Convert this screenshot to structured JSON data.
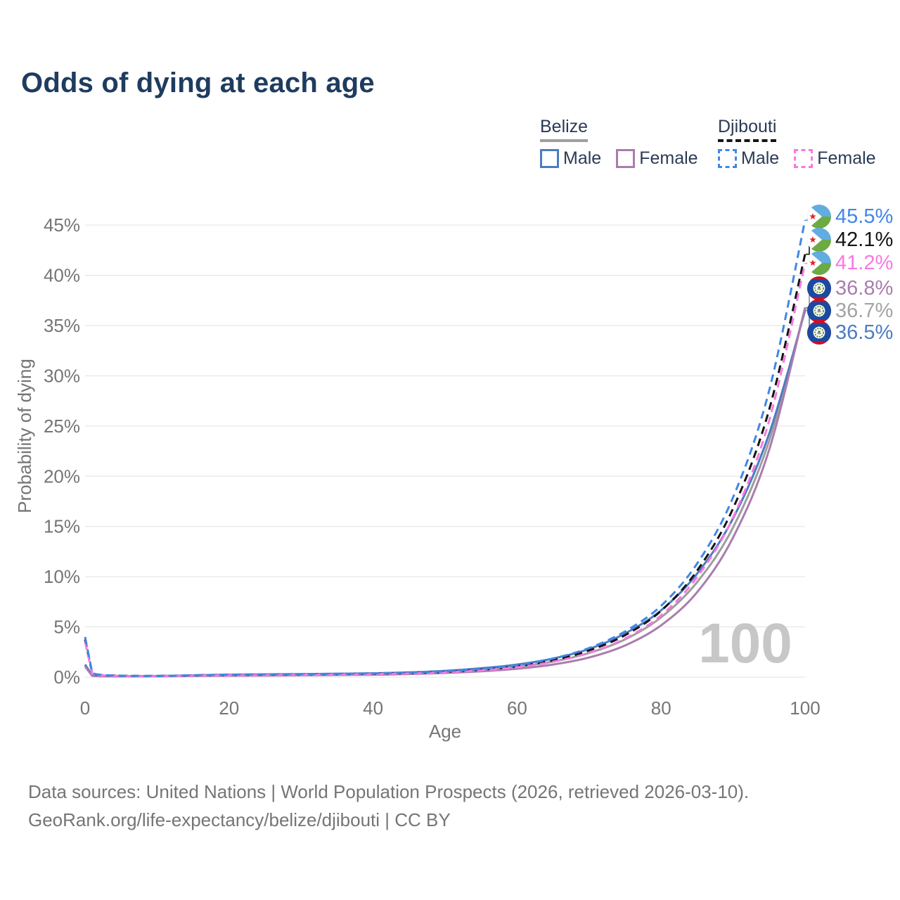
{
  "title": "Odds of dying at each age",
  "legend": {
    "groups": [
      {
        "label": "Belize",
        "line_style": "solid",
        "line_color": "#9e9e9e",
        "items": [
          {
            "label": "Male",
            "color": "#4c7cc0"
          },
          {
            "label": "Female",
            "color": "#aa7cae"
          }
        ]
      },
      {
        "label": "Djibouti",
        "line_style": "dashed",
        "line_color": "#141414",
        "items": [
          {
            "label": "Male",
            "color": "#4187e6"
          },
          {
            "label": "Female",
            "color": "#f878e2"
          }
        ]
      }
    ]
  },
  "watermark": "100",
  "footer": {
    "line1": "Data sources: United Nations | World Population Prospects (2026, retrieved 2026-03-10).",
    "line2": "GeoRank.org/life-expectancy/belize/djibouti | CC BY"
  },
  "chart_data": {
    "type": "line",
    "title": "Odds of dying at each age",
    "xlabel": "Age",
    "ylabel": "Probability of dying",
    "xlim": [
      0,
      100
    ],
    "ylim": [
      0,
      45
    ],
    "grid": true,
    "legend_position": "top-right",
    "x_ticks": [
      0,
      20,
      40,
      60,
      80,
      100
    ],
    "y_ticks": [
      0,
      5,
      10,
      15,
      20,
      25,
      30,
      35,
      40,
      45
    ],
    "y_tick_suffix": "%",
    "ages": [
      0,
      1,
      5,
      10,
      20,
      30,
      40,
      45,
      50,
      55,
      60,
      65,
      70,
      75,
      80,
      85,
      90,
      95,
      100
    ],
    "series": [
      {
        "name": "Belize Both sexes",
        "country": "Belize",
        "sex": "Both",
        "color": "#9e9e9e",
        "dashed": false,
        "end_label": "36.7%",
        "values": [
          1.15,
          0.14,
          0.08,
          0.1,
          0.19,
          0.25,
          0.31,
          0.4,
          0.52,
          0.73,
          1.04,
          1.55,
          2.4,
          3.75,
          5.95,
          9.45,
          14.9,
          23.5,
          36.7
        ]
      },
      {
        "name": "Belize Male",
        "country": "Belize",
        "sex": "Male",
        "color": "#4c7cc0",
        "dashed": false,
        "end_label": "36.5%",
        "values": [
          1.25,
          0.16,
          0.09,
          0.11,
          0.24,
          0.3,
          0.38,
          0.47,
          0.62,
          0.88,
          1.25,
          1.85,
          2.8,
          4.35,
          6.65,
          10.3,
          15.8,
          24.2,
          36.5
        ]
      },
      {
        "name": "Belize Female",
        "country": "Belize",
        "sex": "Female",
        "color": "#aa7cae",
        "dashed": false,
        "end_label": "36.8%",
        "values": [
          1.05,
          0.12,
          0.07,
          0.08,
          0.14,
          0.18,
          0.24,
          0.31,
          0.41,
          0.58,
          0.83,
          1.25,
          1.95,
          3.15,
          5.15,
          8.45,
          13.9,
          22.6,
          36.8
        ]
      },
      {
        "name": "Djibouti Both sexes",
        "country": "Djibouti",
        "sex": "Both",
        "color": "#141414",
        "dashed": true,
        "end_label": "42.1%",
        "values": [
          3.75,
          0.36,
          0.14,
          0.11,
          0.22,
          0.27,
          0.34,
          0.41,
          0.52,
          0.74,
          1.08,
          1.68,
          2.65,
          4.18,
          6.6,
          10.6,
          16.8,
          26.6,
          42.1
        ]
      },
      {
        "name": "Djibouti Female",
        "country": "Djibouti",
        "sex": "Female",
        "color": "#f878e2",
        "dashed": true,
        "end_label": "41.2%",
        "values": [
          3.5,
          0.33,
          0.12,
          0.1,
          0.19,
          0.24,
          0.3,
          0.37,
          0.47,
          0.67,
          0.98,
          1.53,
          2.42,
          3.85,
          6.15,
          9.95,
          15.9,
          25.5,
          41.2
        ]
      },
      {
        "name": "Djibouti Male",
        "country": "Djibouti",
        "sex": "Male",
        "color": "#4187e6",
        "dashed": true,
        "end_label": "45.5%",
        "values": [
          4.0,
          0.4,
          0.15,
          0.12,
          0.25,
          0.3,
          0.38,
          0.46,
          0.58,
          0.82,
          1.2,
          1.85,
          2.9,
          4.55,
          7.1,
          11.3,
          17.9,
          28.5,
          45.5
        ]
      }
    ],
    "end_labels": [
      {
        "text": "45.5%",
        "color": "#4187e6",
        "flag": "djibouti",
        "series": "Djibouti Male"
      },
      {
        "text": "42.1%",
        "color": "#141414",
        "flag": "djibouti",
        "series": "Djibouti Both sexes"
      },
      {
        "text": "41.2%",
        "color": "#f878e2",
        "flag": "djibouti",
        "series": "Djibouti Female"
      },
      {
        "text": "36.8%",
        "color": "#aa7cae",
        "flag": "belize",
        "series": "Belize Female"
      },
      {
        "text": "36.7%",
        "color": "#a3a3a3",
        "flag": "belize",
        "series": "Belize Both sexes"
      },
      {
        "text": "36.5%",
        "color": "#4c7cc0",
        "flag": "belize",
        "series": "Belize Male"
      }
    ]
  }
}
